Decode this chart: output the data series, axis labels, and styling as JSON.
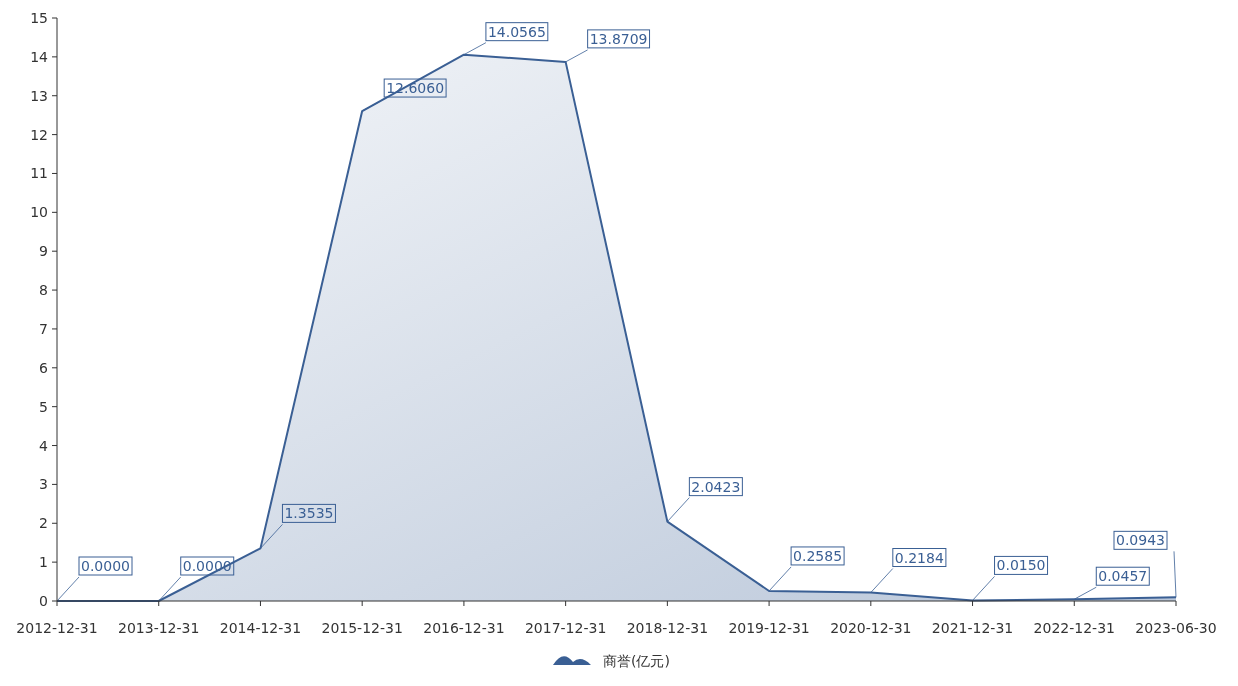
{
  "chart_data": {
    "type": "area",
    "categories": [
      "2012-12-31",
      "2013-12-31",
      "2014-12-31",
      "2015-12-31",
      "2016-12-31",
      "2017-12-31",
      "2018-12-31",
      "2019-12-31",
      "2020-12-31",
      "2021-12-31",
      "2022-12-31",
      "2023-06-30"
    ],
    "series": [
      {
        "name": "商誉(亿元)",
        "color": "#3a5f94",
        "values": [
          0.0,
          0.0,
          1.3535,
          12.606,
          14.0565,
          13.8709,
          2.0423,
          0.2585,
          0.2184,
          0.015,
          0.0457,
          0.0943
        ],
        "value_labels": [
          "0.0000",
          "0.0000",
          "1.3535",
          "12.6060",
          "14.0565",
          "13.8709",
          "2.0423",
          "0.2585",
          "0.2184",
          "0.0150",
          "0.0457",
          "0.0943"
        ]
      }
    ],
    "ylim": [
      0,
      15
    ],
    "yticks": [
      0,
      1,
      2,
      3,
      4,
      5,
      6,
      7,
      8,
      9,
      10,
      11,
      12,
      13,
      14,
      15
    ],
    "grid": false,
    "legend": "bottom"
  }
}
